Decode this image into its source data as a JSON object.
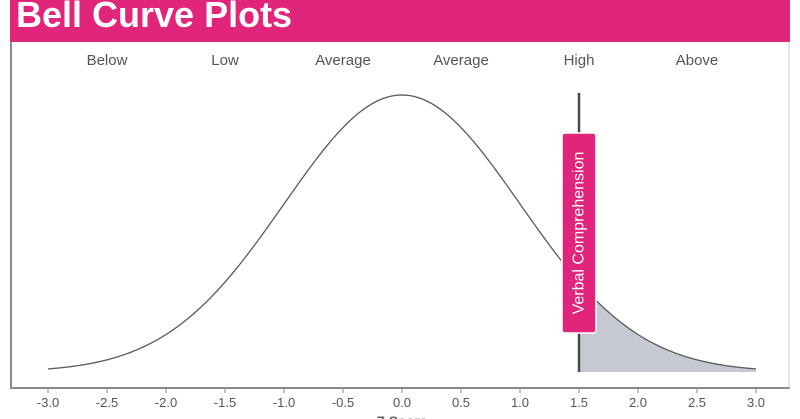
{
  "page": {
    "title": "Bell Curve Plots"
  },
  "chart_data": {
    "type": "area",
    "title": "Bell Curve Plots",
    "xlabel": "Z Score",
    "ylabel": "",
    "xlim": [
      -3.0,
      3.0
    ],
    "ticks": [
      "-3.0",
      "-2.5",
      "-2.0",
      "-1.5",
      "-1.0",
      "-0.5",
      "0.0",
      "0.5",
      "1.0",
      "1.5",
      "2.0",
      "2.5",
      "3.0"
    ],
    "tick_values": [
      -3.0,
      -2.5,
      -2.0,
      -1.5,
      -1.0,
      -0.5,
      0.0,
      0.5,
      1.0,
      1.5,
      2.0,
      2.5,
      3.0
    ],
    "bands": [
      {
        "label": "Below",
        "center": -2.5
      },
      {
        "label": "Low",
        "center": -1.5
      },
      {
        "label": "Average",
        "center": -0.5
      },
      {
        "label": "Average",
        "center": 0.5
      },
      {
        "label": "High",
        "center": 1.5
      },
      {
        "label": "Above",
        "center": 2.5
      }
    ],
    "curve": {
      "distribution": "normal",
      "mean": 0.0,
      "sd": 1.0
    },
    "marker": {
      "label": "Verbal Comprehension",
      "x": 1.5
    },
    "shaded_region": [
      1.5,
      3.0
    ],
    "grid": false,
    "colors": {
      "title_bar": "#e0257a",
      "marker_label": "#e0257a",
      "curve": "#555b5e",
      "shade": "#c5cad2",
      "marker_line": "#4a4a4a",
      "axis": "#8a8a8a"
    }
  }
}
